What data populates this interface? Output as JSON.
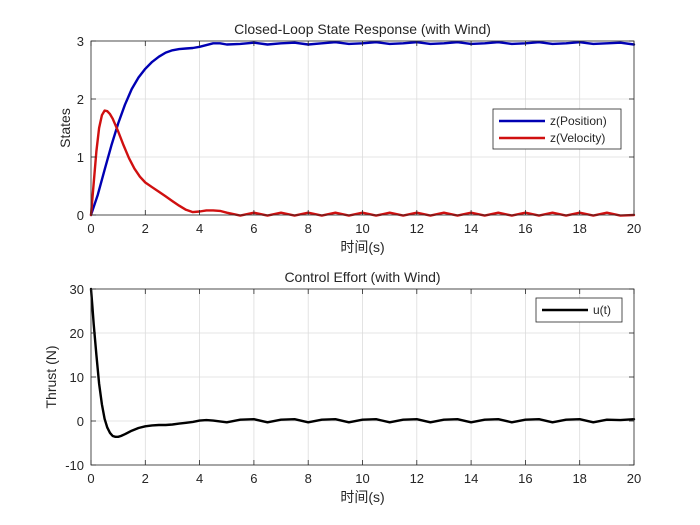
{
  "chart_data": [
    {
      "type": "line",
      "title": "Closed-Loop State Response (with Wind)",
      "xlabel": "时间(s)",
      "ylabel": "States",
      "xlim": [
        0,
        20
      ],
      "ylim": [
        0,
        3
      ],
      "xticks": [
        "0",
        "2",
        "4",
        "6",
        "8",
        "10",
        "12",
        "14",
        "16",
        "18",
        "20"
      ],
      "yticks": [
        "0",
        "1",
        "2",
        "3"
      ],
      "grid": true,
      "legend_position": "right",
      "series": [
        {
          "name": "z(Position)",
          "color": "#0000b3",
          "x": [
            0,
            0.25,
            0.5,
            0.75,
            1.0,
            1.25,
            1.5,
            1.75,
            2.0,
            2.25,
            2.5,
            2.75,
            3.0,
            3.25,
            3.5,
            3.75,
            4.0,
            4.25,
            4.5,
            4.75,
            5.0,
            5.5,
            6.0,
            6.5,
            7.0,
            7.5,
            8.0,
            8.5,
            9.0,
            9.5,
            10.0,
            10.5,
            11.0,
            11.5,
            12.0,
            12.5,
            13.0,
            13.5,
            14.0,
            14.5,
            15.0,
            15.5,
            16.0,
            16.5,
            17.0,
            17.5,
            18.0,
            18.5,
            19.0,
            19.5,
            20.0
          ],
          "values": [
            0,
            0.35,
            0.78,
            1.2,
            1.58,
            1.9,
            2.17,
            2.37,
            2.52,
            2.64,
            2.73,
            2.8,
            2.84,
            2.86,
            2.87,
            2.88,
            2.9,
            2.93,
            2.96,
            2.96,
            2.94,
            2.95,
            2.97,
            2.94,
            2.96,
            2.97,
            2.94,
            2.96,
            2.98,
            2.95,
            2.96,
            2.98,
            2.95,
            2.96,
            2.98,
            2.95,
            2.96,
            2.98,
            2.95,
            2.96,
            2.98,
            2.95,
            2.96,
            2.98,
            2.95,
            2.96,
            2.98,
            2.95,
            2.96,
            2.97,
            2.94
          ]
        },
        {
          "name": "z(Velocity)",
          "color": "#d01010",
          "x": [
            0,
            0.1,
            0.2,
            0.3,
            0.4,
            0.5,
            0.6,
            0.7,
            0.8,
            1.0,
            1.2,
            1.4,
            1.6,
            1.8,
            2.0,
            2.25,
            2.5,
            2.75,
            3.0,
            3.25,
            3.5,
            3.75,
            4.0,
            4.25,
            4.5,
            4.75,
            5.0,
            5.5,
            6.0,
            6.5,
            7.0,
            7.5,
            8.0,
            8.5,
            9.0,
            9.5,
            10.0,
            10.5,
            11.0,
            11.5,
            12.0,
            12.5,
            13.0,
            13.5,
            14.0,
            14.5,
            15.0,
            15.5,
            16.0,
            16.5,
            17.0,
            17.5,
            18.0,
            18.5,
            19.0,
            19.5,
            20.0
          ],
          "values": [
            0,
            0.55,
            1.1,
            1.5,
            1.72,
            1.8,
            1.79,
            1.74,
            1.66,
            1.44,
            1.2,
            0.98,
            0.8,
            0.66,
            0.56,
            0.48,
            0.4,
            0.32,
            0.24,
            0.16,
            0.09,
            0.05,
            0.06,
            0.08,
            0.08,
            0.07,
            0.04,
            -0.01,
            0.04,
            -0.01,
            0.04,
            -0.01,
            0.04,
            -0.01,
            0.04,
            -0.01,
            0.04,
            -0.01,
            0.04,
            -0.01,
            0.04,
            -0.01,
            0.04,
            -0.01,
            0.04,
            -0.01,
            0.04,
            -0.01,
            0.04,
            -0.01,
            0.04,
            -0.01,
            0.04,
            -0.01,
            0.04,
            -0.01,
            0.0
          ]
        }
      ]
    },
    {
      "type": "line",
      "title": "Control Effort (with Wind)",
      "xlabel": "时间(s)",
      "ylabel": "Thrust (N)",
      "xlim": [
        0,
        20
      ],
      "ylim": [
        -10,
        30
      ],
      "xticks": [
        "0",
        "2",
        "4",
        "6",
        "8",
        "10",
        "12",
        "14",
        "16",
        "18",
        "20"
      ],
      "yticks": [
        "-10",
        "0",
        "10",
        "20",
        "30"
      ],
      "grid": true,
      "legend_position": "top-right",
      "series": [
        {
          "name": "u(t)",
          "color": "#000000",
          "x": [
            0,
            0.05,
            0.1,
            0.2,
            0.3,
            0.4,
            0.5,
            0.6,
            0.7,
            0.8,
            0.9,
            1.0,
            1.1,
            1.25,
            1.5,
            1.75,
            2.0,
            2.25,
            2.5,
            2.75,
            3.0,
            3.25,
            3.5,
            3.75,
            4.0,
            4.25,
            4.5,
            5.0,
            5.5,
            6.0,
            6.5,
            7.0,
            7.5,
            8.0,
            8.5,
            9.0,
            9.5,
            10.0,
            10.5,
            11.0,
            11.5,
            12.0,
            12.5,
            13.0,
            13.5,
            14.0,
            14.5,
            15.0,
            15.5,
            16.0,
            16.5,
            17.0,
            17.5,
            18.0,
            18.5,
            19.0,
            19.5,
            20.0
          ],
          "values": [
            30,
            26,
            22,
            15,
            8.5,
            3.8,
            0.5,
            -1.5,
            -2.7,
            -3.4,
            -3.6,
            -3.6,
            -3.4,
            -3.0,
            -2.2,
            -1.6,
            -1.2,
            -1.0,
            -0.9,
            -0.9,
            -0.8,
            -0.6,
            -0.4,
            -0.2,
            0.1,
            0.2,
            0.1,
            -0.3,
            0.3,
            0.4,
            -0.3,
            0.3,
            0.4,
            -0.3,
            0.3,
            0.4,
            -0.3,
            0.3,
            0.4,
            -0.3,
            0.3,
            0.4,
            -0.3,
            0.3,
            0.4,
            -0.3,
            0.3,
            0.4,
            -0.3,
            0.3,
            0.4,
            -0.3,
            0.3,
            0.4,
            -0.3,
            0.3,
            0.2,
            0.4
          ]
        }
      ]
    }
  ]
}
